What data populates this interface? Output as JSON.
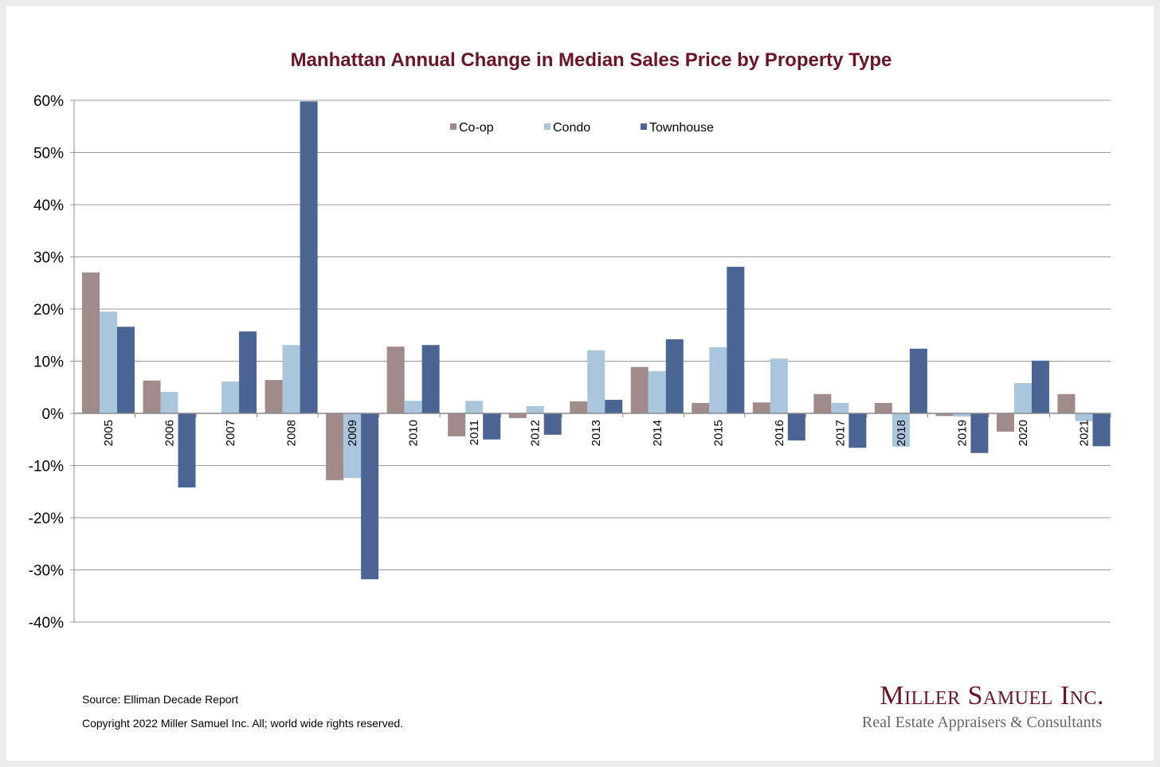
{
  "chart_data": {
    "type": "bar",
    "title": "Manhattan Annual Change in Median Sales Price by Property Type",
    "xlabel": "",
    "ylabel": "",
    "ylim": [
      -40,
      60
    ],
    "yticks": [
      60,
      50,
      40,
      30,
      20,
      10,
      0,
      -10,
      -20,
      -30,
      -40
    ],
    "ytick_labels": [
      "60%",
      "50%",
      "40%",
      "30%",
      "20%",
      "10%",
      "0%",
      "-10%",
      "-20%",
      "-30%",
      "-40%"
    ],
    "grid": true,
    "legend_position": "top-center",
    "categories": [
      "2005",
      "2006",
      "2007",
      "2008",
      "2009",
      "2010",
      "2011",
      "2012",
      "2013",
      "2014",
      "2015",
      "2016",
      "2017",
      "2018",
      "2019",
      "2020",
      "2021"
    ],
    "series": [
      {
        "name": "Co-op",
        "color": "#a08a8a",
        "values": [
          27.0,
          6.3,
          0,
          6.4,
          -12.8,
          12.8,
          -4.4,
          -0.9,
          2.3,
          8.9,
          2.0,
          2.1,
          3.7,
          2.0,
          -0.5,
          -3.5,
          3.7
        ]
      },
      {
        "name": "Condo",
        "color": "#a9c6dc",
        "values": [
          19.5,
          4.1,
          6.1,
          13.1,
          -12.4,
          2.4,
          2.4,
          1.4,
          12.1,
          8.1,
          12.7,
          10.5,
          2.0,
          -6.4,
          -0.6,
          5.8,
          -1.5
        ]
      },
      {
        "name": "Townhouse",
        "color": "#4a6494",
        "values": [
          16.6,
          -14.2,
          15.7,
          59.8,
          -31.8,
          13.1,
          -5.0,
          -4.1,
          2.6,
          14.2,
          28.1,
          -5.2,
          -6.6,
          12.4,
          -7.6,
          10.1,
          -6.3
        ]
      }
    ]
  },
  "footer": {
    "source": "Source: Elliman Decade Report",
    "copyright": "Copyright 2022 Miller Samuel Inc.  All; world wide rights reserved."
  },
  "logo": {
    "name": "Miller Samuel Inc.",
    "tagline": "Real Estate Appraisers & Consultants"
  }
}
